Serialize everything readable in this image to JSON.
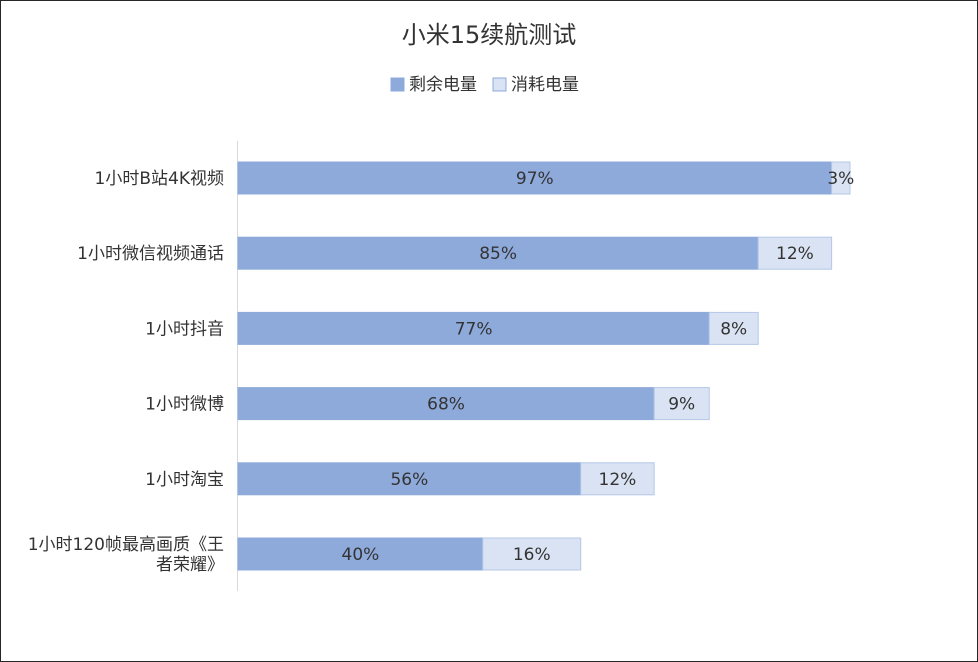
{
  "chart_data": {
    "type": "bar",
    "orientation": "horizontal",
    "stacked": true,
    "title": "小米15续航测试",
    "categories": [
      "1小时B站4K视频",
      "1小时微信视频通话",
      "1小时抖音",
      "1小时微博",
      "1小时淘宝",
      "1小时120帧最高画质《王者荣耀》"
    ],
    "category_lines": [
      [
        "1小时B站4K视频"
      ],
      [
        "1小时微信视频通话"
      ],
      [
        "1小时抖音"
      ],
      [
        "1小时微博"
      ],
      [
        "1小时淘宝"
      ],
      [
        "1小时120帧最高画质《王",
        "者荣耀》"
      ]
    ],
    "series": [
      {
        "name": "剩余电量",
        "color": "#8eaadb",
        "values": [
          97,
          85,
          77,
          68,
          56,
          40
        ],
        "labels": [
          "97%",
          "85%",
          "77%",
          "68%",
          "56%",
          "40%"
        ]
      },
      {
        "name": "消耗电量",
        "color": "#dae3f3",
        "values": [
          3,
          12,
          8,
          9,
          12,
          16
        ],
        "labels": [
          "3%",
          "12%",
          "8%",
          "9%",
          "12%",
          "16%"
        ]
      }
    ],
    "xlim": [
      0,
      120
    ],
    "legend_position": "top",
    "grid": false
  }
}
